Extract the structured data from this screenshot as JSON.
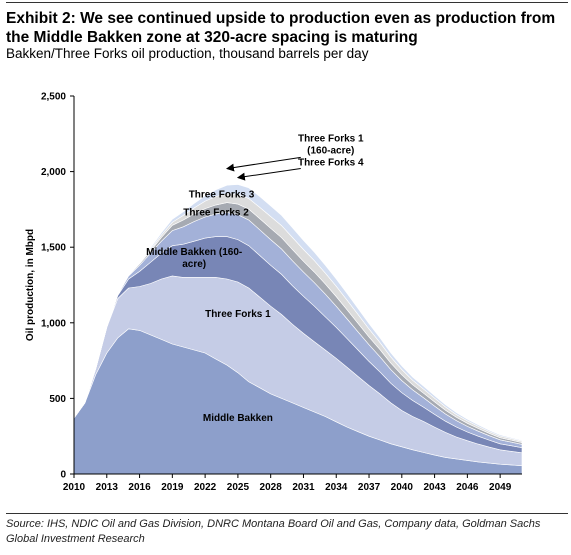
{
  "header": {
    "title": "Exhibit 2: We see continued upside to production even as production from the Middle Bakken zone at 320-acre spacing is maturing",
    "subtitle": "Bakken/Three Forks oil production, thousand barrels per day"
  },
  "footer": {
    "source": "Source: IHS, NDIC Oil and Gas Division, DNRC Montana Board Oil and Gas, Company data, Goldman Sachs Global Investment Research"
  },
  "chart_data": {
    "type": "area",
    "stacked": true,
    "title": "",
    "xlabel": "",
    "ylabel": "Oil production, in Mbpd",
    "ylim": [
      0,
      2500
    ],
    "yticks": [
      0,
      500,
      1000,
      1500,
      2000,
      2500
    ],
    "ytick_labels": [
      "0",
      "500",
      "1,000",
      "1,500",
      "2,000",
      "2,500"
    ],
    "xlim": [
      2010,
      2051
    ],
    "xticks": [
      2010,
      2013,
      2016,
      2019,
      2022,
      2025,
      2028,
      2031,
      2034,
      2037,
      2040,
      2043,
      2046,
      2049
    ],
    "grid": false,
    "x": [
      2010,
      2011,
      2012,
      2013,
      2014,
      2015,
      2016,
      2017,
      2018,
      2019,
      2020,
      2021,
      2022,
      2023,
      2024,
      2025,
      2026,
      2027,
      2028,
      2029,
      2030,
      2031,
      2032,
      2033,
      2034,
      2035,
      2036,
      2037,
      2038,
      2039,
      2040,
      2041,
      2042,
      2043,
      2044,
      2045,
      2046,
      2047,
      2048,
      2049,
      2050,
      2051
    ],
    "series": [
      {
        "name": "Middle Bakken",
        "color": "#8d9fcb",
        "values": [
          370,
          470,
          660,
          800,
          900,
          960,
          950,
          920,
          890,
          860,
          840,
          820,
          800,
          760,
          720,
          670,
          610,
          570,
          530,
          500,
          470,
          440,
          410,
          380,
          345,
          310,
          280,
          250,
          225,
          200,
          180,
          160,
          142,
          125,
          110,
          100,
          90,
          80,
          72,
          65,
          60,
          55
        ]
      },
      {
        "name": "Three Forks 1",
        "color": "#c5cce6",
        "values": [
          0,
          0,
          40,
          170,
          260,
          270,
          290,
          340,
          400,
          450,
          460,
          480,
          500,
          540,
          570,
          600,
          620,
          600,
          580,
          555,
          520,
          490,
          465,
          440,
          420,
          395,
          365,
          335,
          305,
          270,
          240,
          220,
          205,
          185,
          165,
          145,
          130,
          118,
          106,
          95,
          90,
          85
        ]
      },
      {
        "name": "Middle Bakken (160-acre)",
        "color": "#7886b6",
        "values": [
          0,
          0,
          0,
          0,
          20,
          60,
          100,
          140,
          170,
          200,
          220,
          240,
          260,
          270,
          280,
          280,
          280,
          275,
          270,
          265,
          255,
          245,
          235,
          220,
          205,
          190,
          175,
          160,
          145,
          130,
          118,
          106,
          94,
          84,
          74,
          66,
          58,
          52,
          46,
          40,
          37,
          34
        ]
      },
      {
        "name": "Three Forks 2",
        "color": "#a3b1d8",
        "values": [
          0,
          0,
          0,
          0,
          5,
          20,
          40,
          60,
          80,
          100,
          115,
          130,
          140,
          150,
          160,
          165,
          170,
          170,
          170,
          168,
          165,
          160,
          155,
          150,
          140,
          130,
          120,
          110,
          100,
          90,
          80,
          70,
          62,
          55,
          48,
          42,
          37,
          33,
          29,
          26,
          24,
          22
        ]
      },
      {
        "name": "Three Forks 3",
        "color": "#a6aab2",
        "values": [
          0,
          0,
          0,
          0,
          0,
          5,
          10,
          15,
          25,
          35,
          45,
          50,
          55,
          60,
          65,
          70,
          72,
          74,
          75,
          75,
          74,
          72,
          70,
          67,
          64,
          60,
          56,
          52,
          48,
          43,
          38,
          34,
          31,
          28,
          25,
          22,
          20,
          18,
          16,
          14,
          13,
          12
        ]
      },
      {
        "name": "Three Forks 4",
        "color": "#dcdcdc",
        "values": [
          0,
          0,
          0,
          0,
          0,
          0,
          5,
          10,
          15,
          20,
          30,
          40,
          50,
          55,
          60,
          65,
          70,
          74,
          78,
          80,
          80,
          78,
          76,
          72,
          68,
          64,
          58,
          52,
          46,
          40,
          35,
          30,
          27,
          24,
          21,
          18,
          16,
          14,
          12,
          11,
          10,
          9
        ]
      },
      {
        "name": "Three Forks 1 (160-acre)",
        "color": "#d3def2",
        "values": [
          0,
          0,
          0,
          0,
          0,
          0,
          5,
          10,
          15,
          20,
          25,
          30,
          35,
          45,
          55,
          65,
          70,
          72,
          70,
          67,
          64,
          60,
          56,
          52,
          48,
          44,
          40,
          36,
          32,
          28,
          24,
          21,
          19,
          17,
          15,
          13,
          11,
          10,
          9,
          8,
          7,
          6
        ]
      }
    ],
    "annotations": [
      {
        "text": "Middle Bakken",
        "x": 2025,
        "y": 350
      },
      {
        "text": "Three Forks 1",
        "x": 2025,
        "y": 1040
      },
      {
        "text": "Middle Bakken (160-acre)",
        "x": 2021,
        "y": 1450
      },
      {
        "text": "Three Forks 2",
        "x": 2023,
        "y": 1710
      },
      {
        "text": "Three Forks 3",
        "x": 2023.5,
        "y": 1830
      },
      {
        "text": "Three Forks 4",
        "x": 2033.5,
        "y": 2040,
        "arrow_to": [
          2025,
          1960
        ]
      },
      {
        "text": "Three Forks 1 (160-acre)",
        "x": 2033.5,
        "y": 2200,
        "arrow_to": [
          2024,
          2020
        ]
      }
    ]
  }
}
